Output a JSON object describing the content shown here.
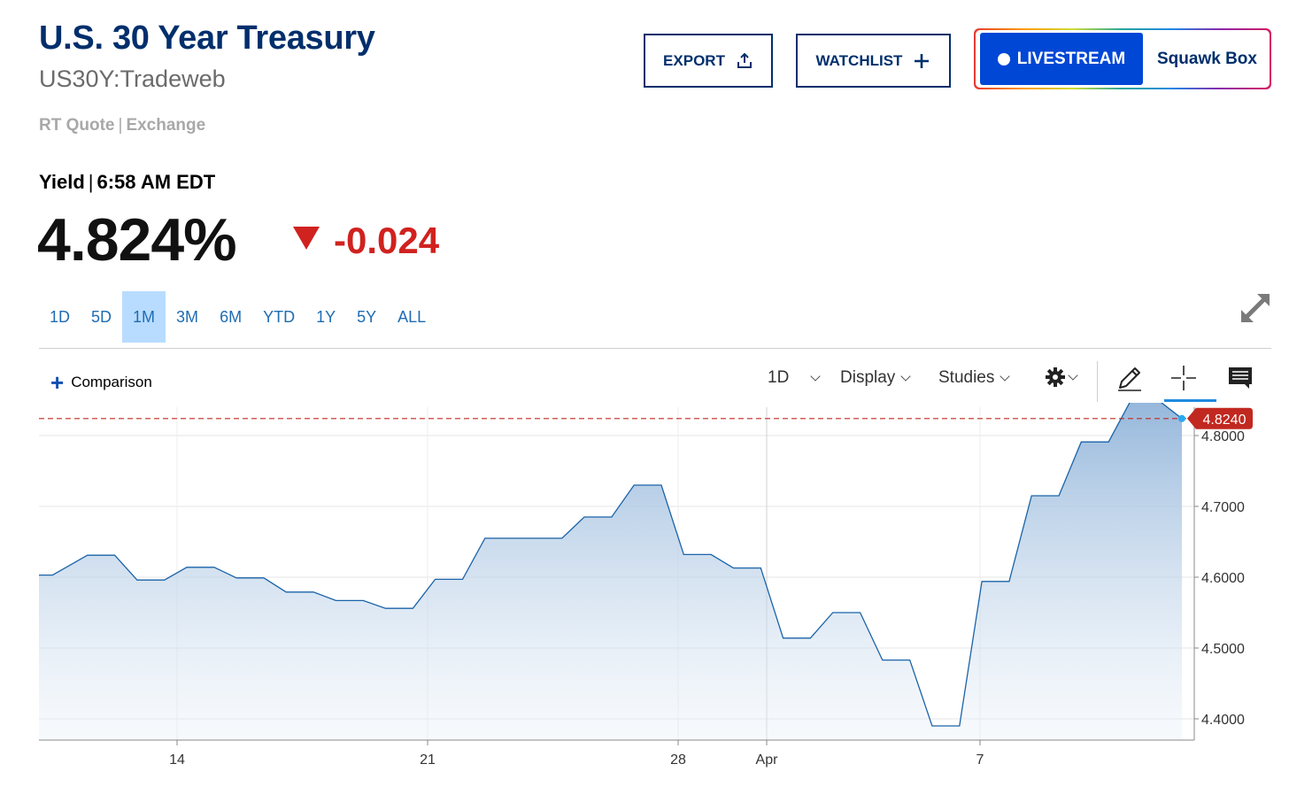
{
  "header": {
    "title": "U.S. 30 Year Treasury",
    "symbol": "US30Y:Tradeweb",
    "quote_type": "RT Quote",
    "quote_venue": "Exchange"
  },
  "actions": {
    "export_label": "EXPORT",
    "watchlist_label": "WATCHLIST",
    "livestream_label": "LIVESTREAM",
    "squawk_label": "Squawk Box"
  },
  "quote": {
    "label": "Yield",
    "time": "6:58 AM EDT",
    "price": "4.824%",
    "change": "-0.024",
    "change_direction": "down",
    "down_color": "#d0221f"
  },
  "ranges": {
    "items": [
      "1D",
      "5D",
      "1M",
      "3M",
      "6M",
      "YTD",
      "1Y",
      "5Y",
      "ALL"
    ],
    "selected": "1M"
  },
  "toolbar": {
    "comparison_label": "Comparison",
    "interval_label": "1D",
    "display_label": "Display",
    "studies_label": "Studies",
    "icons": [
      "settings-icon",
      "draw-pencil-icon",
      "crosshair-icon",
      "comment-icon",
      "expand-icon"
    ]
  },
  "chart_data": {
    "type": "area",
    "xlabel": "",
    "ylabel": "",
    "ylim": [
      4.37,
      4.84
    ],
    "grid": true,
    "x_tick_labels": [
      "14",
      "21",
      "28",
      "Apr",
      "7"
    ],
    "y_tick_labels": [
      "4.4000",
      "4.5000",
      "4.6000",
      "4.7000",
      "4.8000"
    ],
    "y_ticks": [
      4.4,
      4.5,
      4.6,
      4.7,
      4.8
    ],
    "last_value_label": "4.8240",
    "last_value": 4.824,
    "line_color": "#1a63a8",
    "last_value_color": "#c1281f",
    "series": [
      {
        "values": [
          4.603,
          4.631,
          4.596,
          4.614,
          4.599,
          4.579,
          4.567,
          4.556,
          4.597,
          4.655,
          4.655,
          4.685,
          4.73,
          4.632,
          4.613,
          4.514,
          4.55,
          4.483,
          4.39,
          4.594,
          4.715,
          4.791,
          4.85,
          4.824
        ]
      }
    ]
  }
}
